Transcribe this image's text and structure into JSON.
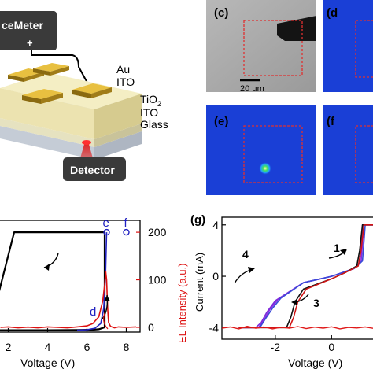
{
  "figure": {
    "device_labels": {
      "sourcemeter": "ceMeter",
      "plus": "+",
      "au": "Au",
      "ito_top": "ITO",
      "tio2": "TiO",
      "tio2_sub": "2",
      "ito": "ITO",
      "glass": "Glass",
      "detector": "Detector"
    },
    "panel_c": {
      "letter": "(c)",
      "scale_bar": "20 μm"
    },
    "panel_d": {
      "letter": "(d"
    },
    "panel_e": {
      "letter": "(e)"
    },
    "panel_f": {
      "letter": "(f"
    },
    "panel_g": {
      "letter": "(g)"
    },
    "colors": {
      "laser_red": "#e01010",
      "square_red": "#e03030",
      "camera_blue": "#1a3fd6",
      "el_red": "#dd1111",
      "marker_blue": "#2020c0"
    }
  },
  "chart_data": [
    {
      "type": "line",
      "panel": "left-bottom",
      "xlabel": "Voltage (V)",
      "ylabel_right": "EL Intensity (a.u.)",
      "x_ticks": [
        "2",
        "4",
        "6",
        "8"
      ],
      "y_right_ticks": [
        "0",
        "100",
        "200"
      ],
      "xlim": [
        1.5,
        8.7
      ],
      "ylim_right": [
        -10,
        225
      ],
      "point_labels": [
        "d",
        "e",
        "f"
      ],
      "series": [
        {
          "color": "#000000",
          "x": [
            1.5,
            2.3,
            6.9,
            6.9,
            6.75,
            6.6,
            6.3,
            5.5,
            4.0,
            2.5,
            1.5
          ],
          "y": [
            70,
            200,
            200,
            0,
            -2,
            -4,
            -5,
            -5.5,
            -6,
            -6,
            -6
          ]
        },
        {
          "color": "#2020c0",
          "x": [
            5.5,
            6.0,
            6.4,
            6.7,
            6.85,
            6.95,
            7.0
          ],
          "y": [
            -6,
            -5,
            -2,
            8,
            40,
            120,
            200
          ]
        },
        {
          "color": "#dd1111",
          "x": [
            1.6,
            2.0,
            2.5,
            3.0,
            3.5,
            4.0,
            4.5,
            5.0,
            5.5,
            6.0,
            6.3,
            6.6,
            6.8,
            6.9,
            6.95,
            7.0,
            7.05,
            7.1,
            7.2,
            7.4,
            7.6,
            8.0,
            8.5
          ],
          "y": [
            0,
            1,
            -1,
            0.5,
            -1,
            1,
            0,
            -1,
            1,
            3,
            8,
            22,
            55,
            90,
            118,
            100,
            40,
            10,
            2,
            -1,
            1,
            0,
            1
          ]
        }
      ]
    },
    {
      "type": "line",
      "panel": "right-bottom",
      "xlabel": "Voltage (V)",
      "ylabel": "Current (mA)",
      "x_ticks": [
        "-2",
        "0"
      ],
      "y_ticks": [
        "4",
        "0",
        "-4"
      ],
      "xlim": [
        -3.9,
        1.7
      ],
      "ylim": [
        -4.9,
        4.6
      ],
      "sweep_labels": [
        "1",
        "3",
        "4"
      ],
      "series": [
        {
          "color": "#7a2bd8",
          "x": [
            -3.3,
            -2.7,
            -2.5,
            -2.3,
            -2.0,
            -1.0,
            0.0,
            0.8,
            1.0,
            1.1,
            1.4,
            1.7
          ],
          "y": [
            -4,
            -4,
            -3.6,
            -2.8,
            -1.9,
            -0.5,
            0,
            0.6,
            1.0,
            4.0,
            4.0,
            4.0
          ]
        },
        {
          "color": "#8a2be2",
          "x": [
            -3.3,
            -2.6,
            -2.4,
            -2.2,
            -1.9,
            -1.0,
            0.0,
            0.8,
            1.05,
            1.15,
            1.4,
            1.7
          ],
          "y": [
            -4,
            -4,
            -3.4,
            -2.6,
            -1.8,
            -0.5,
            0,
            0.6,
            1.1,
            4.0,
            4.0,
            4.0
          ]
        },
        {
          "color": "#3a4bd8",
          "x": [
            -3.3,
            -2.55,
            -2.35,
            -2.1,
            -1.8,
            -1.0,
            0.0,
            0.8,
            1.1,
            1.2,
            1.4,
            1.7
          ],
          "y": [
            -4,
            -4,
            -3.3,
            -2.5,
            -1.7,
            -0.5,
            0,
            0.6,
            1.2,
            4.0,
            4.0,
            4.0
          ]
        },
        {
          "color": "#111111",
          "x": [
            -3.3,
            -1.6,
            -1.45,
            -1.3,
            -1.0,
            0.0,
            0.5,
            0.9,
            1.0,
            1.1,
            1.7
          ],
          "y": [
            -4,
            -4,
            -3.2,
            -2.0,
            -1.0,
            -0.2,
            0.3,
            0.8,
            2.0,
            4.0,
            4.0
          ]
        },
        {
          "color": "#d01515",
          "x": [
            -3.3,
            -1.5,
            -1.35,
            -1.2,
            -0.9,
            0.0,
            0.5,
            0.95,
            1.05,
            1.15,
            1.7
          ],
          "y": [
            -4,
            -4,
            -3.2,
            -2.0,
            -1.0,
            -0.2,
            0.3,
            0.8,
            2.0,
            4.0,
            4.0
          ]
        },
        {
          "color": "#e01a1a",
          "noisy": true,
          "x": [
            -3.9,
            -3.6,
            -3.3,
            -3.0,
            -2.7,
            -2.4,
            -2.1,
            -1.8,
            -1.5,
            -1.2,
            -0.9,
            -0.6,
            -0.3,
            0.0,
            0.3,
            0.6,
            0.9,
            1.2,
            1.5,
            1.7
          ],
          "y": [
            -4.05,
            -3.95,
            -4.1,
            -3.9,
            -4.05,
            -3.95,
            -4.1,
            -3.97,
            -4.05,
            -3.92,
            -4.08,
            -3.96,
            -4.04,
            -3.94,
            -4.1,
            -3.98,
            -4.03,
            -3.95,
            -4.06,
            -4.0
          ]
        }
      ]
    }
  ]
}
